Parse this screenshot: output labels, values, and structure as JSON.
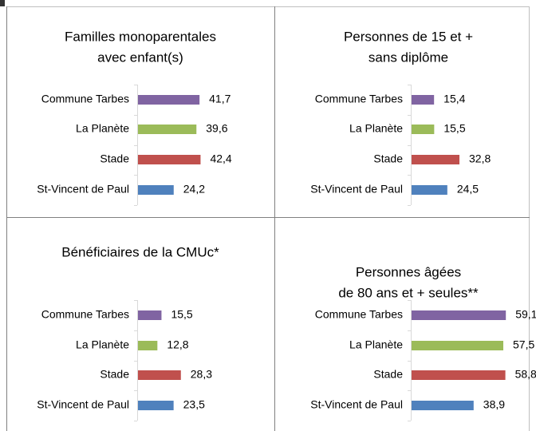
{
  "chart_data": [
    {
      "type": "bar",
      "title": [
        "Familles monoparentales",
        "avec enfant(s)"
      ],
      "categories": [
        "Commune Tarbes",
        "La Planète",
        "Stade",
        "St-Vincent de Paul"
      ],
      "values": [
        41.7,
        39.6,
        42.4,
        24.2
      ],
      "value_labels": [
        "41,7",
        "39,6",
        "42,4",
        "24,2"
      ],
      "colors": [
        "#8064a2",
        "#9bbb59",
        "#c0504d",
        "#4f81bd"
      ]
    },
    {
      "type": "bar",
      "title": [
        "Personnes de 15 et +",
        "sans diplôme"
      ],
      "categories": [
        "Commune Tarbes",
        "La Planète",
        "Stade",
        "St-Vincent de Paul"
      ],
      "values": [
        15.4,
        15.5,
        32.8,
        24.5
      ],
      "value_labels": [
        "15,4",
        "15,5",
        "32,8",
        "24,5"
      ],
      "colors": [
        "#8064a2",
        "#9bbb59",
        "#c0504d",
        "#4f81bd"
      ]
    },
    {
      "type": "bar",
      "title": [
        "Bénéficiaires de la CMUc*"
      ],
      "categories": [
        "Commune Tarbes",
        "La Planète",
        "Stade",
        "St-Vincent de Paul"
      ],
      "values": [
        15.5,
        12.8,
        28.3,
        23.5
      ],
      "value_labels": [
        "15,5",
        "12,8",
        "28,3",
        "23,5"
      ],
      "colors": [
        "#8064a2",
        "#9bbb59",
        "#c0504d",
        "#4f81bd"
      ]
    },
    {
      "type": "bar",
      "title": [
        "Personnes âgées",
        "de 80 ans et + seules**"
      ],
      "categories": [
        "Commune Tarbes",
        "La Planète",
        "Stade",
        "St-Vincent de Paul"
      ],
      "values": [
        59.1,
        57.5,
        58.8,
        38.9
      ],
      "value_labels": [
        "59,1",
        "57,5",
        "58,8",
        "38,9"
      ],
      "colors": [
        "#8064a2",
        "#9bbb59",
        "#c0504d",
        "#4f81bd"
      ]
    }
  ]
}
